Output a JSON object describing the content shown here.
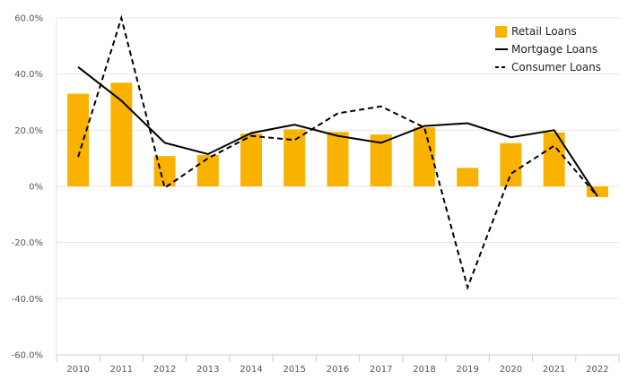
{
  "chart_data": {
    "type": "bar+line",
    "title": "",
    "xlabel": "",
    "ylabel": "",
    "categories": [
      "2010",
      "2011",
      "2012",
      "2013",
      "2014",
      "2015",
      "2016",
      "2017",
      "2018",
      "2019",
      "2020",
      "2021",
      "2022"
    ],
    "ylim": [
      -60,
      60
    ],
    "yticks": [
      -60,
      -40,
      -20,
      0,
      20,
      40,
      60
    ],
    "ytick_labels": [
      "-60.0%",
      "-40.0%",
      "-20.0%",
      "0%",
      "20.0%",
      "40.0%",
      "60.0%"
    ],
    "grid": true,
    "legend_position": "top-right",
    "colors": {
      "bar": "#F9B200",
      "line": "#000000",
      "grid": "#E6E6E6",
      "axis": "#CCCCCC"
    },
    "series": [
      {
        "name": "Retail Loans",
        "kind": "bar",
        "style": "solid",
        "values": [
          33,
          36.9,
          10.8,
          11.2,
          18.8,
          20.3,
          19.4,
          18.5,
          21.0,
          6.6,
          15.4,
          19.2,
          -3.8
        ]
      },
      {
        "name": "Mortgage Loans",
        "kind": "line",
        "style": "solid",
        "values": [
          42.5,
          30.5,
          15.5,
          11.5,
          19.0,
          22.0,
          18.0,
          15.5,
          21.5,
          22.5,
          17.5,
          20.0,
          -3.5
        ]
      },
      {
        "name": "Consumer Loans",
        "kind": "line",
        "style": "dashed",
        "values": [
          10.5,
          60.0,
          -0.5,
          10.0,
          18.0,
          16.5,
          26.0,
          28.5,
          21.0,
          -36.0,
          4.5,
          14.5,
          -3.5
        ]
      }
    ]
  }
}
